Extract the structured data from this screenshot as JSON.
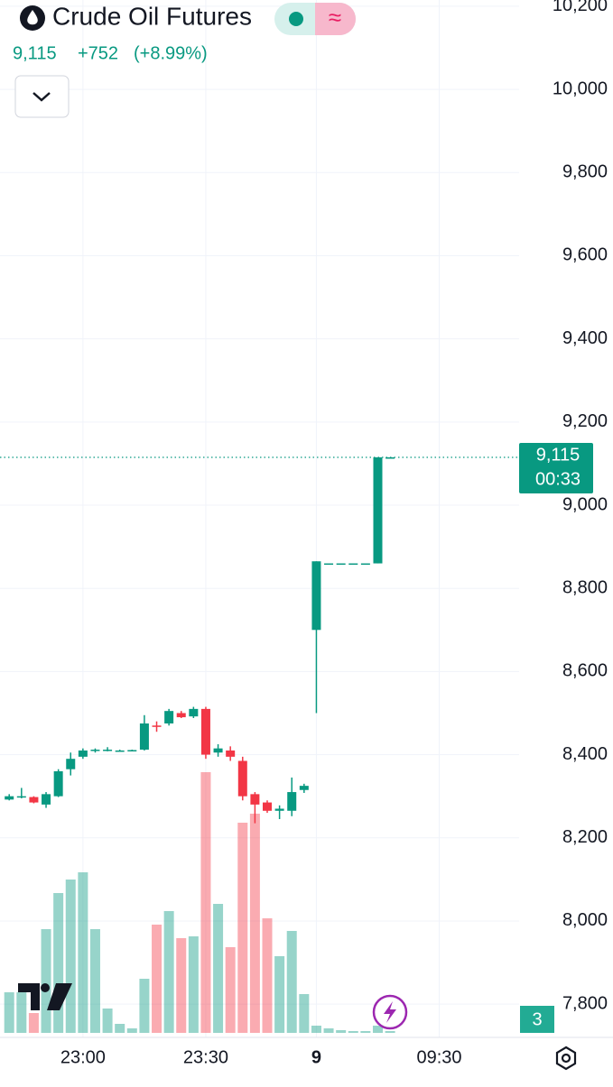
{
  "chart_data": {
    "type": "candlestick",
    "title": "Crude Oil Futures",
    "last": {
      "value": 9115,
      "label": "9,115"
    },
    "change": {
      "value": 752,
      "label": "+752"
    },
    "change_pct": {
      "value": 8.99,
      "label": "(+8.99%)"
    },
    "countdown": "00:33",
    "badge": "3",
    "up_color": "#089981",
    "down_color": "#f23645",
    "ylim": [
      7720,
      10215
    ],
    "yticks": [
      {
        "value": 7800,
        "label": "7,800"
      },
      {
        "value": 8000,
        "label": "8,000"
      },
      {
        "value": 8200,
        "label": "8,200"
      },
      {
        "value": 8400,
        "label": "8,400"
      },
      {
        "value": 8600,
        "label": "8,600"
      },
      {
        "value": 8800,
        "label": "8,800"
      },
      {
        "value": 9000,
        "label": "9,000"
      },
      {
        "value": 9200,
        "label": "9,200"
      },
      {
        "value": 9400,
        "label": "9,400"
      },
      {
        "value": 9600,
        "label": "9,600"
      },
      {
        "value": 9800,
        "label": "9,800"
      },
      {
        "value": 10000,
        "label": "10,000"
      },
      {
        "value": 10200,
        "label": "10,200"
      }
    ],
    "xlim": [
      -0.75,
      41.5
    ],
    "xticks": [
      {
        "value": 6,
        "label": "23:00"
      },
      {
        "value": 16,
        "label": "23:30"
      },
      {
        "value": 25,
        "label": "9"
      },
      {
        "value": 35,
        "label": "09:30"
      }
    ],
    "grid": true,
    "open": [
      8292,
      8298,
      8298,
      8280,
      8300,
      8365,
      8395,
      8410,
      8410,
      8410,
      8410,
      8412,
      8470,
      8475,
      8500,
      8492,
      8510,
      8405,
      8410,
      8385,
      8305,
      8285,
      8265,
      8265,
      8315,
      8700,
      8860,
      8860,
      8860,
      8860,
      8860,
      9115
    ],
    "high": [
      8305,
      8320,
      8300,
      8310,
      8365,
      8405,
      8415,
      8415,
      8418,
      8412,
      8412,
      8495,
      8480,
      8510,
      8505,
      8515,
      8515,
      8425,
      8420,
      8395,
      8310,
      8290,
      8278,
      8345,
      8330,
      8865,
      8860,
      8860,
      8860,
      8860,
      9115,
      9115
    ],
    "low": [
      8290,
      8295,
      8283,
      8272,
      8298,
      8350,
      8390,
      8405,
      8408,
      8408,
      8408,
      8410,
      8455,
      8470,
      8488,
      8488,
      8390,
      8395,
      8385,
      8290,
      8235,
      8260,
      8245,
      8252,
      8308,
      8500,
      8860,
      8860,
      8860,
      8860,
      8860,
      9115
    ],
    "close": [
      8300,
      8300,
      8285,
      8305,
      8360,
      8390,
      8410,
      8412,
      8412,
      8410,
      8411,
      8475,
      8468,
      8505,
      8490,
      8510,
      8400,
      8415,
      8395,
      8300,
      8280,
      8265,
      8270,
      8310,
      8325,
      8865,
      8860,
      8860,
      8860,
      8860,
      9115,
      9115
    ],
    "volume_lim": [
      0,
      300
    ],
    "volume": [
      45,
      45,
      22,
      115,
      155,
      170,
      178,
      115,
      27,
      10,
      5,
      60,
      120,
      135,
      105,
      107,
      289,
      143,
      95,
      233,
      243,
      127,
      85,
      113,
      43,
      8,
      5,
      3,
      2,
      2,
      8,
      2
    ]
  }
}
